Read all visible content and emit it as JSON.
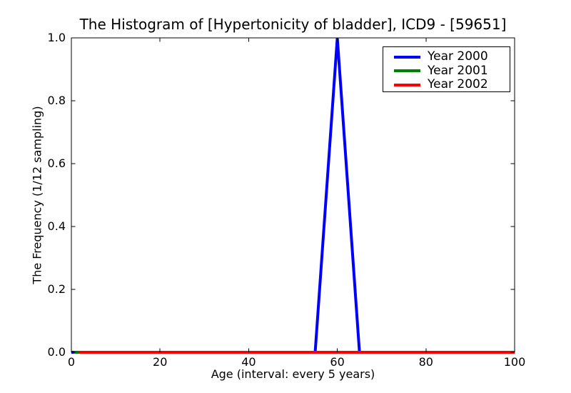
{
  "chart_data": {
    "type": "line",
    "title": "The Histogram of [Hypertonicity of bladder], ICD9 - [59651]",
    "xlabel": "Age (interval: every 5 years)",
    "ylabel": "The Frequency (1/12 sampling)",
    "xlim": [
      0,
      100
    ],
    "ylim": [
      0.0,
      1.0
    ],
    "xticks": [
      "0",
      "20",
      "40",
      "60",
      "80",
      "100"
    ],
    "yticks": [
      "0.0",
      "0.2",
      "0.4",
      "0.6",
      "0.8",
      "1.0"
    ],
    "grid": false,
    "legend_position": "upper right",
    "x": [
      0,
      5,
      10,
      15,
      20,
      25,
      30,
      35,
      40,
      45,
      50,
      55,
      60,
      65,
      70,
      75,
      80,
      85,
      90,
      95,
      100
    ],
    "series": [
      {
        "name": "Year 2000",
        "color": "#0000ff",
        "values": [
          0,
          0,
          0,
          0,
          0,
          0,
          0,
          0,
          0,
          0,
          0,
          0,
          1.0,
          0,
          0,
          0,
          0,
          0,
          0,
          0,
          0
        ]
      },
      {
        "name": "Year 2001",
        "color": "#008000",
        "values": [
          0,
          0,
          0,
          0,
          0,
          0,
          0,
          0,
          0,
          0,
          0,
          0,
          0,
          0,
          0,
          0,
          0,
          0,
          0,
          0,
          0
        ]
      },
      {
        "name": "Year 2002",
        "color": "#ff0000",
        "values": [
          0,
          0,
          0,
          0,
          0,
          0,
          0,
          0,
          0,
          0,
          0,
          0,
          0,
          0,
          0,
          0,
          0,
          0,
          0,
          0,
          0
        ]
      }
    ]
  }
}
